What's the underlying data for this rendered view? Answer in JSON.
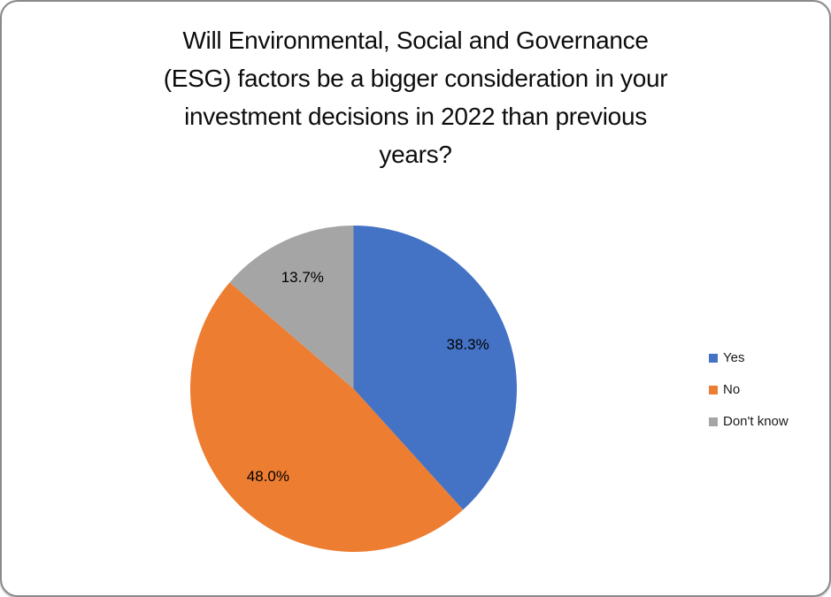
{
  "window": {
    "background": "#ffffff",
    "border_color": "#8a8a8a"
  },
  "chart_data": {
    "type": "pie",
    "title": "Will Environmental, Social and Governance (ESG) factors be a bigger consideration in your investment decisions in 2022 than previous years?",
    "title_lines": [
      "Will Environmental, Social and Governance",
      "(ESG) factors be a bigger consideration in your",
      "investment decisions in 2022 than previous",
      "years?"
    ],
    "categories": [
      "Yes",
      "No",
      "Don't know"
    ],
    "values": [
      38.3,
      48.0,
      13.7
    ],
    "data_labels": [
      "38.3%",
      "48.0%",
      "13.7%"
    ],
    "colors": [
      "#4472C4",
      "#ED7D31",
      "#A5A5A5"
    ],
    "start_angle_deg": 0,
    "direction": "clockwise",
    "legend_position": "right",
    "title_color": "#0d0d0d",
    "label_color": "#000000",
    "grid": "off"
  }
}
